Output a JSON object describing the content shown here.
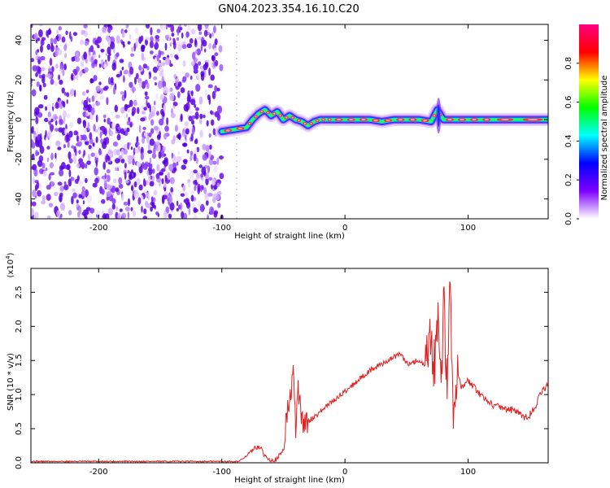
{
  "title": "GN04.2023.354.16.10.C20",
  "chart_data": [
    {
      "type": "heatmap",
      "xlabel": "Height of straight line (km)",
      "ylabel": "Frequency (Hz)",
      "xlim": [
        -255,
        165
      ],
      "ylim": [
        -50,
        48
      ],
      "xticks": [
        -200,
        -100,
        0,
        100
      ],
      "yticks": [
        -40,
        -20,
        0,
        20,
        40
      ],
      "colorbar": {
        "label": "Normalized spectral amplitude",
        "range": [
          0,
          1
        ],
        "ticks": [
          0.0,
          0.2,
          0.4,
          0.6,
          0.8
        ],
        "colors": [
          "#ffffff",
          "#7f00ff",
          "#0000ff",
          "#00ffff",
          "#00ff00",
          "#ffff00",
          "#ff0000",
          "#ff0080"
        ]
      },
      "noise_region_x": [
        -255,
        -100
      ],
      "signal_track": {
        "x": [
          -100,
          -90,
          -80,
          -75,
          -70,
          -65,
          -60,
          -55,
          -50,
          -45,
          -40,
          -35,
          -30,
          -25,
          -20,
          -15,
          -10,
          0,
          10,
          20,
          30,
          40,
          50,
          60,
          70,
          75,
          80,
          90,
          100,
          110,
          120,
          140,
          165
        ],
        "y": [
          -6,
          -5,
          -4,
          0,
          3,
          5,
          2,
          4,
          0,
          2,
          0,
          -1,
          -3,
          -1,
          0,
          0,
          0,
          0,
          0,
          0,
          -1,
          0,
          0,
          0,
          -1,
          5,
          0,
          0,
          0,
          0,
          0,
          0,
          0
        ]
      },
      "grid": false
    },
    {
      "type": "line",
      "xlabel": "Height of straight line (km)",
      "ylabel": "SNR (10 * v/v)",
      "yscale_label": "(x10^4)",
      "xlim": [
        -255,
        165
      ],
      "ylim": [
        0,
        2.85
      ],
      "xticks": [
        -200,
        -100,
        0,
        100
      ],
      "yticks": [
        0.0,
        0.5,
        1.0,
        1.5,
        2.0,
        2.5
      ],
      "line_color": "#e02020",
      "series": [
        {
          "x": [
            -255,
            -150,
            -86,
            -80,
            -75,
            -70,
            -65,
            -60,
            -55,
            -50,
            -48,
            -45,
            -42,
            -40,
            -38,
            -35,
            -30,
            -20,
            -10,
            0,
            10,
            20,
            30,
            40,
            45,
            50,
            60,
            65,
            70,
            72,
            75,
            78,
            80,
            83,
            85,
            88,
            90,
            95,
            100,
            110,
            120,
            130,
            140,
            145,
            150,
            155,
            160,
            165
          ],
          "y": [
            0.02,
            0.02,
            0.02,
            0.1,
            0.18,
            0.25,
            0.1,
            0.05,
            0.05,
            0.2,
            0.6,
            0.9,
            1.3,
            0.5,
            1.1,
            0.6,
            0.6,
            0.75,
            0.9,
            1.05,
            1.2,
            1.35,
            1.45,
            1.55,
            1.6,
            1.45,
            1.5,
            1.4,
            1.8,
            1.2,
            2.2,
            0.9,
            2.5,
            1.0,
            2.85,
            0.5,
            1.4,
            1.1,
            1.2,
            1.0,
            0.85,
            0.8,
            0.75,
            0.65,
            0.7,
            0.85,
            1.05,
            1.15
          ]
        }
      ]
    }
  ]
}
